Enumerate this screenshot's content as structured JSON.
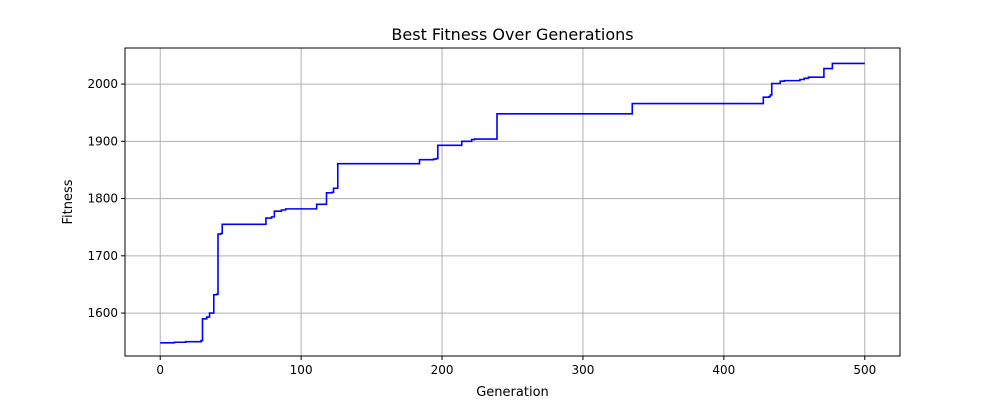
{
  "chart_data": {
    "type": "line",
    "title": "Best Fitness Over Generations",
    "xlabel": "Generation",
    "ylabel": "Fitness",
    "xlim": [
      -25,
      525
    ],
    "ylim": [
      1525,
      2063
    ],
    "xticks": [
      0,
      100,
      200,
      300,
      400,
      500
    ],
    "yticks": [
      1600,
      1700,
      1800,
      1900,
      2000
    ],
    "grid": true,
    "step": "post",
    "series": [
      {
        "color": "#0000ff",
        "x": [
          0,
          10,
          18,
          29,
          30,
          33,
          35,
          38,
          40,
          41,
          43,
          44,
          75,
          79,
          81,
          86,
          89,
          110,
          111,
          116,
          118,
          122,
          123,
          126,
          183,
          184,
          194,
          196,
          197,
          198,
          214,
          216,
          221,
          223,
          238,
          239,
          334,
          335,
          427,
          428,
          432,
          433,
          434,
          438,
          440,
          443,
          454,
          457,
          460,
          470,
          471,
          476,
          477,
          500
        ],
        "y": [
          1548,
          1549,
          1550,
          1552,
          1590,
          1593,
          1600,
          1632,
          1633,
          1738,
          1739,
          1755,
          1766,
          1768,
          1778,
          1780,
          1782,
          1782,
          1790,
          1790,
          1810,
          1811,
          1818,
          1861,
          1861,
          1868,
          1869,
          1870,
          1893,
          1893,
          1900,
          1900,
          1903,
          1904,
          1904,
          1948,
          1948,
          1966,
          1966,
          1977,
          1978,
          1981,
          2001,
          2001,
          2005,
          2006,
          2008,
          2010,
          2012,
          2012,
          2027,
          2027,
          2036,
          2036
        ]
      }
    ]
  }
}
